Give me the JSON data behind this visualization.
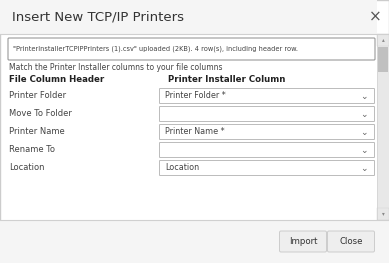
{
  "title": "Insert New TCP/IP Printers",
  "close_x": "×",
  "upload_text": "\"PrinterInstallerTCPIPPrinters (1).csv\" uploaded (2KB). 4 row(s), including header row.",
  "match_text": "Match the Printer Installer columns to your file columns",
  "col_header_left": "File Column Header",
  "col_header_right": "Printer Installer Column",
  "rows": [
    {
      "left": "Printer Folder",
      "right": "Printer Folder *"
    },
    {
      "left": "Move To Folder",
      "right": ""
    },
    {
      "left": "Printer Name",
      "right": "Printer Name *"
    },
    {
      "left": "Rename To",
      "right": ""
    },
    {
      "left": "Location",
      "right": "Location"
    }
  ],
  "btn_import": "Import",
  "btn_close": "Close",
  "bg_color": "#f5f5f5",
  "dialog_bg": "#ffffff",
  "border_color": "#d0d0d0",
  "title_color": "#333333",
  "text_color": "#444444",
  "header_color": "#222222",
  "upload_box_bg": "#ffffff",
  "upload_box_border": "#999999",
  "dropdown_bg": "#ffffff",
  "dropdown_border": "#bbbbbb",
  "scrollbar_track": "#e8e8e8",
  "scrollbar_thumb": "#c0c0c0",
  "btn_bg": "#eeeeee",
  "btn_border": "#cccccc",
  "btn_text_color": "#333333",
  "dialog_border": "#cccccc",
  "footer_bg": "#f5f5f5"
}
